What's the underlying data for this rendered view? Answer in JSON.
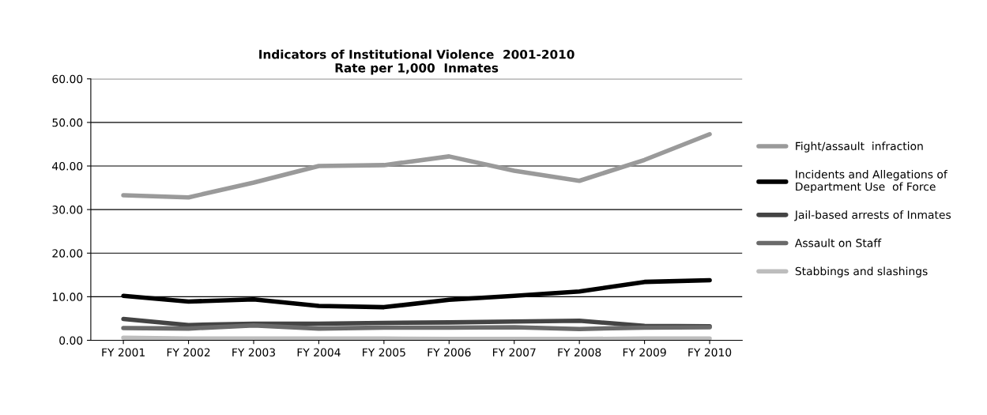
{
  "chart_data": {
    "type": "line",
    "title": "Indicators of Institutional Violence  2001-2010\nRate per 1,000  Inmates",
    "categories": [
      "FY 2001",
      "FY 2002",
      "FY 2003",
      "FY 2004",
      "FY 2005",
      "FY 2006",
      "FY 2007",
      "FY 2008",
      "FY 2009",
      "FY 2010"
    ],
    "series": [
      {
        "name": "Fight/assault  infraction",
        "color": "#9a9a9a",
        "values": [
          33.3,
          32.8,
          36.2,
          40.0,
          40.2,
          42.2,
          38.9,
          36.6,
          41.4,
          47.3
        ]
      },
      {
        "name": "Incidents and Allegations of\nDepartment Use  of Force",
        "color": "#000000",
        "values": [
          10.2,
          8.9,
          9.4,
          7.9,
          7.6,
          9.3,
          10.2,
          11.2,
          13.4,
          13.8
        ]
      },
      {
        "name": "Jail-based arrests of Inmates",
        "color": "#444444",
        "values": [
          4.9,
          3.5,
          3.8,
          3.8,
          4.0,
          4.1,
          4.3,
          4.5,
          3.3,
          3.2
        ]
      },
      {
        "name": "Assault on Staff",
        "color": "#6a6a6a",
        "values": [
          2.8,
          2.7,
          3.4,
          2.7,
          2.9,
          2.9,
          3.0,
          2.6,
          2.9,
          3.0
        ]
      },
      {
        "name": "Stabbings and slashings",
        "color": "#bdbdbd",
        "values": [
          0.6,
          0.4,
          0.4,
          0.4,
          0.4,
          0.3,
          0.3,
          0.3,
          0.4,
          0.4
        ]
      }
    ],
    "ylim": [
      0,
      60
    ],
    "yticks": [
      {
        "value": 0,
        "label": "0.00"
      },
      {
        "value": 10,
        "label": "10.00"
      },
      {
        "value": 20,
        "label": "20.00"
      },
      {
        "value": 30,
        "label": "30.00"
      },
      {
        "value": 40,
        "label": "40.00"
      },
      {
        "value": 50,
        "label": "50.00"
      },
      {
        "value": 60,
        "label": "60.00"
      }
    ],
    "grid": "y",
    "legend": "right",
    "marker": "none",
    "line_style": "solid"
  }
}
